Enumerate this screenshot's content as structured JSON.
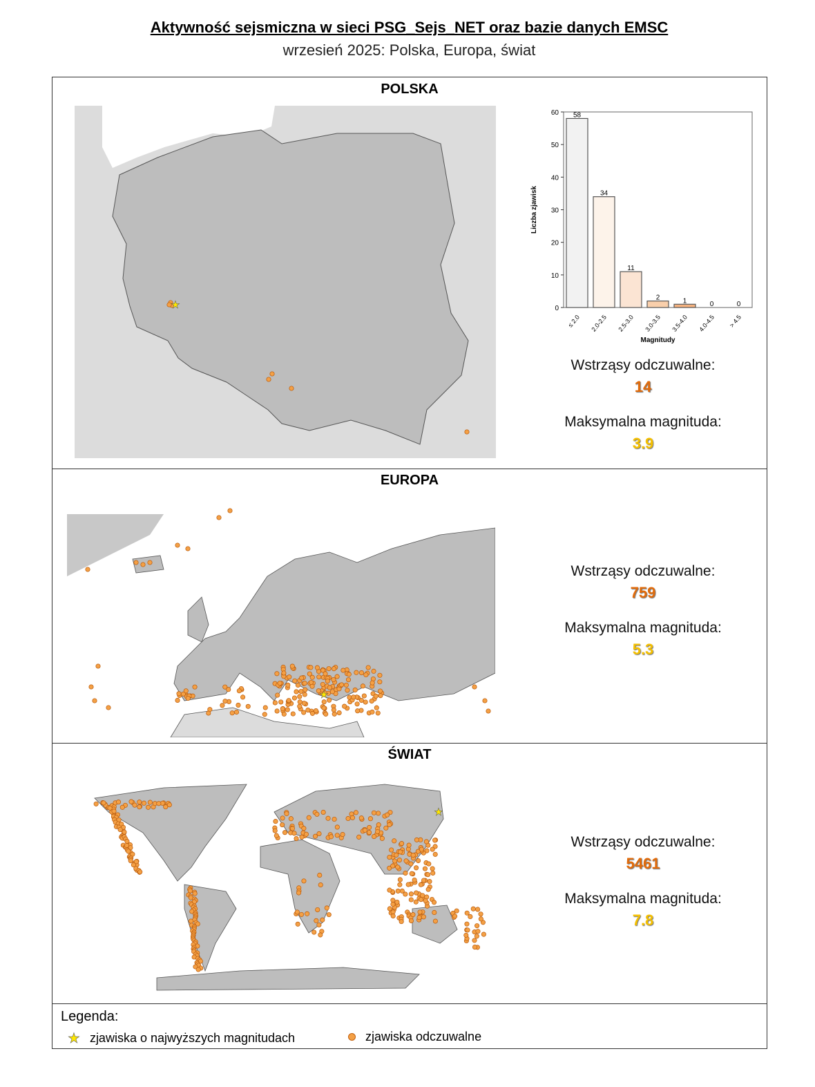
{
  "header": {
    "title": "Aktywność sejsmiczna w sieci PSG_Sejs_NET oraz bazie danych EMSC",
    "subtitle": "wrzesień 2025: Polska, Europa, świat"
  },
  "sections": [
    {
      "title": "POLSKA",
      "felt_label": "Wstrząsy odczuwalne:",
      "felt_value": "14",
      "max_label": "Maksymalna magnituda:",
      "max_value": "3.9"
    },
    {
      "title": "EUROPA",
      "felt_label": "Wstrząsy odczuwalne:",
      "felt_value": "759",
      "max_label": "Maksymalna magnituda:",
      "max_value": "5.3"
    },
    {
      "title": "ŚWIAT",
      "felt_label": "Wstrząsy odczuwalne:",
      "felt_value": "5461",
      "max_label": "Maksymalna magnituda:",
      "max_value": "7.8"
    }
  ],
  "legend": {
    "title": "Legenda:",
    "items": [
      {
        "icon": "star-icon",
        "label": "zjawiska o najwyższych magnitudach",
        "color": "#ffff00"
      },
      {
        "icon": "circle-icon",
        "label": "zjawiska odczuwalne",
        "color": "#f4a045"
      }
    ]
  },
  "colors": {
    "felt": "#e26b0a",
    "max": "#f5c000",
    "land": "#c0c0c0",
    "background_land": "#dcdcdc"
  },
  "chart_data": {
    "type": "bar",
    "categories": [
      "≤ 2.0",
      "2.0-2.5",
      "2.5-3.0",
      "3.0-3.5",
      "3.5-4.0",
      "4.0-4.5",
      "> 4.5"
    ],
    "values": [
      58,
      34,
      11,
      2,
      1,
      0,
      0
    ],
    "data_labels": [
      "58",
      "34",
      "11",
      "2",
      "1",
      "0",
      "0"
    ],
    "bar_colors": [
      "#f2f2f2",
      "#fdf3ea",
      "#fbe4d3",
      "#f9cfab",
      "#f5b27f",
      "#f29a5a",
      "#ee8030"
    ],
    "xlabel": "Magnitudy",
    "ylabel": "Liczba zjawisk",
    "ylim": [
      0,
      60
    ],
    "yticks": [
      "0",
      "10",
      "20",
      "30",
      "40",
      "50",
      "60"
    ],
    "grid": false
  }
}
